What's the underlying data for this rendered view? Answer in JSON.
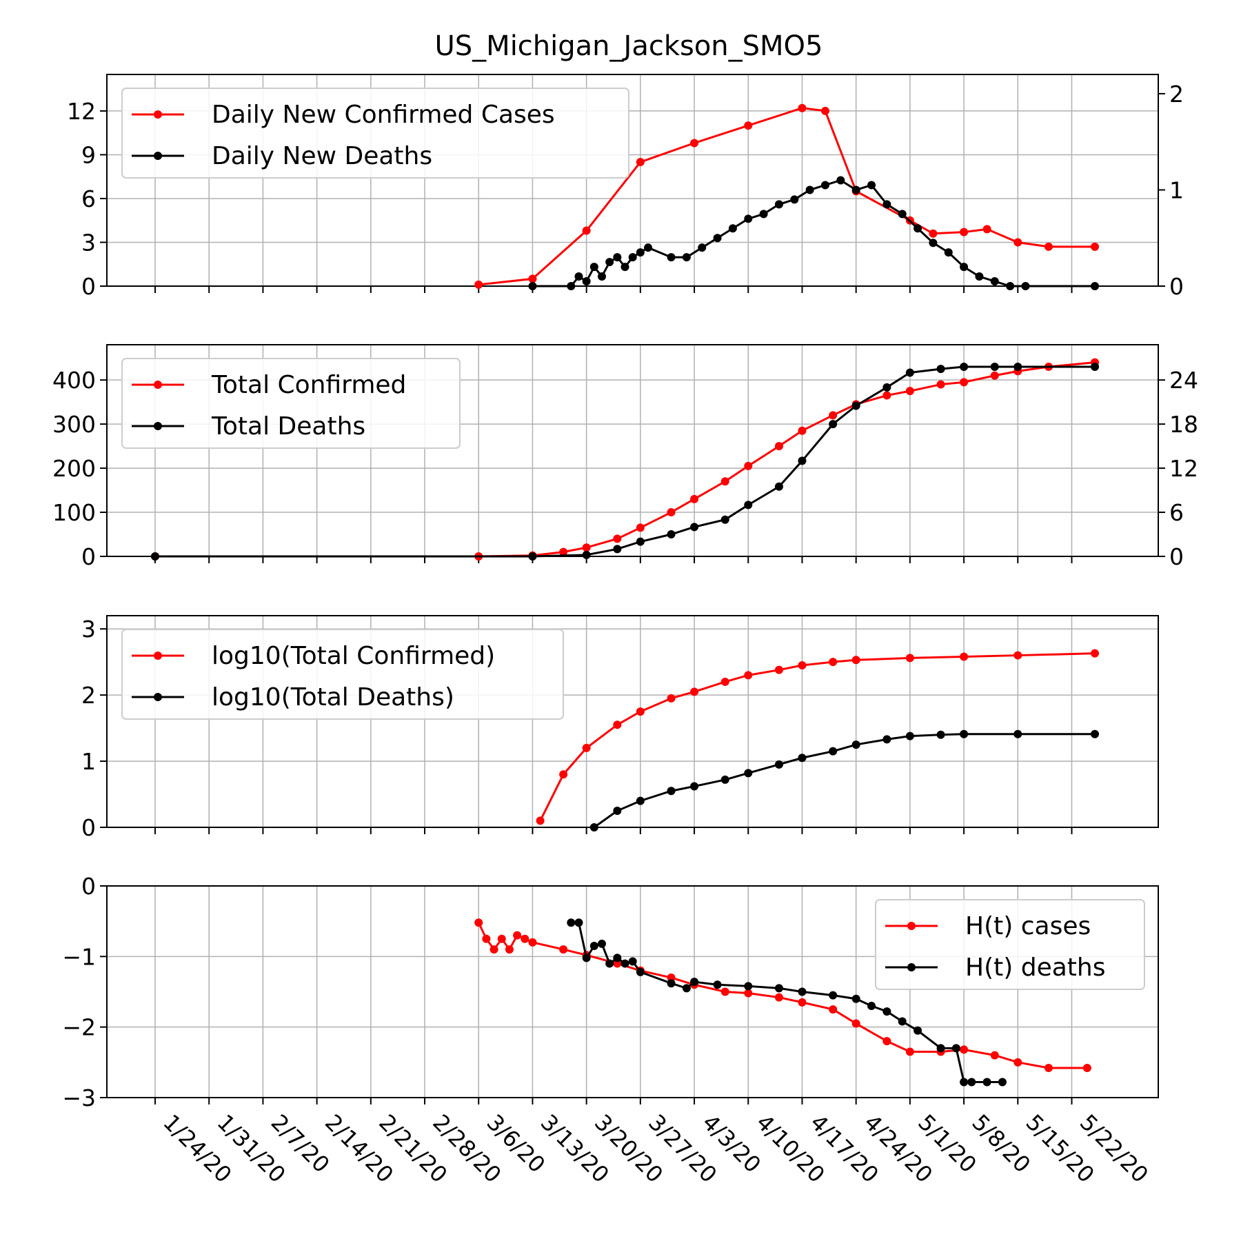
{
  "title": "US_Michigan_Jackson_SMO5",
  "colors": {
    "cases": "#ff0000",
    "deaths": "#000000",
    "grid": "#b0b0b0"
  },
  "x_tick_labels": [
    "1/24/20",
    "1/31/20",
    "2/7/20",
    "2/14/20",
    "2/21/20",
    "2/28/20",
    "3/6/20",
    "3/13/20",
    "3/20/20",
    "3/27/20",
    "4/3/20",
    "4/10/20",
    "4/17/20",
    "4/24/20",
    "5/1/20",
    "5/8/20",
    "5/15/20",
    "5/22/20"
  ],
  "chart_data": [
    {
      "type": "line",
      "x_range": [
        "1/24/20",
        "5/25/20"
      ],
      "ylim_left": [
        0,
        14.5
      ],
      "ylim_right": [
        0,
        2.2
      ],
      "left_ticks": [
        0,
        3,
        6,
        9,
        12
      ],
      "right_ticks": [
        0,
        1,
        2
      ],
      "grid": true,
      "legend_position": "top-left",
      "series": [
        {
          "name": "Daily New Confirmed Cases",
          "color": "#ff0000",
          "axis": "left",
          "x": [
            "3/6/20",
            "3/13/20",
            "3/20/20",
            "3/27/20",
            "4/3/20",
            "4/10/20",
            "4/17/20",
            "4/20/20",
            "4/24/20",
            "5/1/20",
            "5/4/20",
            "5/8/20",
            "5/11/20",
            "5/15/20",
            "5/19/20",
            "5/25/20"
          ],
          "y": [
            0.1,
            0.5,
            3.8,
            8.5,
            9.8,
            11.0,
            12.2,
            12.0,
            6.5,
            4.5,
            3.6,
            3.7,
            3.9,
            3.0,
            2.7,
            2.7
          ]
        },
        {
          "name": "Daily New Deaths",
          "color": "#000000",
          "axis": "right",
          "x": [
            "3/13/20",
            "3/18/20",
            "3/19/20",
            "3/20/20",
            "3/21/20",
            "3/22/20",
            "3/23/20",
            "3/24/20",
            "3/25/20",
            "3/26/20",
            "3/27/20",
            "3/28/20",
            "3/31/20",
            "4/2/20",
            "4/4/20",
            "4/6/20",
            "4/8/20",
            "4/10/20",
            "4/12/20",
            "4/14/20",
            "4/16/20",
            "4/18/20",
            "4/20/20",
            "4/22/20",
            "4/24/20",
            "4/26/20",
            "4/28/20",
            "4/30/20",
            "5/2/20",
            "5/4/20",
            "5/6/20",
            "5/8/20",
            "5/10/20",
            "5/12/20",
            "5/14/20",
            "5/16/20",
            "5/25/20"
          ],
          "y": [
            0,
            0,
            0.1,
            0.05,
            0.2,
            0.1,
            0.25,
            0.3,
            0.2,
            0.3,
            0.35,
            0.4,
            0.3,
            0.3,
            0.4,
            0.5,
            0.6,
            0.7,
            0.75,
            0.85,
            0.9,
            1.0,
            1.05,
            1.1,
            1.0,
            1.05,
            0.85,
            0.75,
            0.6,
            0.45,
            0.35,
            0.2,
            0.1,
            0.05,
            0.0,
            0.0,
            0.0
          ]
        }
      ]
    },
    {
      "type": "line",
      "x_range": [
        "1/24/20",
        "5/25/20"
      ],
      "ylim_left": [
        0,
        480
      ],
      "ylim_right": [
        0,
        28.8
      ],
      "left_ticks": [
        0,
        100,
        200,
        300,
        400
      ],
      "right_ticks": [
        0,
        6,
        12,
        18,
        24
      ],
      "grid": true,
      "legend_position": "top-left",
      "series": [
        {
          "name": "Total Confirmed",
          "color": "#ff0000",
          "axis": "left",
          "x": [
            "1/24/20",
            "3/6/20",
            "3/13/20",
            "3/17/20",
            "3/20/20",
            "3/24/20",
            "3/27/20",
            "3/31/20",
            "4/3/20",
            "4/7/20",
            "4/10/20",
            "4/14/20",
            "4/17/20",
            "4/21/20",
            "4/24/20",
            "4/28/20",
            "5/1/20",
            "5/5/20",
            "5/8/20",
            "5/12/20",
            "5/15/20",
            "5/19/20",
            "5/25/20"
          ],
          "y": [
            0,
            0,
            2,
            10,
            20,
            40,
            65,
            100,
            130,
            170,
            205,
            250,
            285,
            320,
            345,
            365,
            375,
            390,
            395,
            410,
            420,
            430,
            440
          ]
        },
        {
          "name": "Total Deaths",
          "color": "#000000",
          "axis": "right",
          "x": [
            "1/24/20",
            "3/13/20",
            "3/20/20",
            "3/24/20",
            "3/27/20",
            "3/31/20",
            "4/3/20",
            "4/7/20",
            "4/10/20",
            "4/14/20",
            "4/17/20",
            "4/21/20",
            "4/24/20",
            "4/28/20",
            "5/1/20",
            "5/5/20",
            "5/8/20",
            "5/12/20",
            "5/15/20",
            "5/25/20"
          ],
          "y": [
            0,
            0,
            0.2,
            1.0,
            2.0,
            3.0,
            4.0,
            5.0,
            7.0,
            9.5,
            13.0,
            18.0,
            20.5,
            23.0,
            25.0,
            25.5,
            25.8,
            25.8,
            25.8,
            25.8
          ]
        }
      ]
    },
    {
      "type": "line",
      "x_range": [
        "1/24/20",
        "5/25/20"
      ],
      "ylim_left": [
        0,
        3.2
      ],
      "left_ticks": [
        0,
        1,
        2,
        3
      ],
      "grid": true,
      "legend_position": "top-left",
      "series": [
        {
          "name": "log10(Total Confirmed)",
          "color": "#ff0000",
          "x": [
            "3/14/20",
            "3/17/20",
            "3/20/20",
            "3/24/20",
            "3/27/20",
            "3/31/20",
            "4/3/20",
            "4/7/20",
            "4/10/20",
            "4/14/20",
            "4/17/20",
            "4/21/20",
            "4/24/20",
            "5/1/20",
            "5/8/20",
            "5/15/20",
            "5/25/20"
          ],
          "y": [
            0.1,
            0.8,
            1.2,
            1.55,
            1.75,
            1.95,
            2.05,
            2.2,
            2.3,
            2.38,
            2.45,
            2.5,
            2.53,
            2.56,
            2.58,
            2.6,
            2.63
          ]
        },
        {
          "name": "log10(Total Deaths)",
          "color": "#000000",
          "x": [
            "3/21/20",
            "3/24/20",
            "3/27/20",
            "3/31/20",
            "4/3/20",
            "4/7/20",
            "4/10/20",
            "4/14/20",
            "4/17/20",
            "4/21/20",
            "4/24/20",
            "4/28/20",
            "5/1/20",
            "5/5/20",
            "5/8/20",
            "5/15/20",
            "5/25/20"
          ],
          "y": [
            0.0,
            0.25,
            0.4,
            0.55,
            0.62,
            0.72,
            0.82,
            0.95,
            1.05,
            1.15,
            1.25,
            1.33,
            1.38,
            1.4,
            1.41,
            1.41,
            1.41
          ]
        }
      ]
    },
    {
      "type": "line",
      "x_range": [
        "1/24/20",
        "5/25/20"
      ],
      "ylim_left": [
        -3,
        0
      ],
      "left_ticks": [
        -3,
        -2,
        -1,
        0
      ],
      "grid": true,
      "legend_position": "top-right",
      "series": [
        {
          "name": "H(t) cases",
          "color": "#ff0000",
          "x": [
            "3/6/20",
            "3/7/20",
            "3/8/20",
            "3/9/20",
            "3/10/20",
            "3/11/20",
            "3/12/20",
            "3/13/20",
            "3/17/20",
            "3/20/20",
            "3/24/20",
            "3/27/20",
            "3/31/20",
            "4/3/20",
            "4/7/20",
            "4/10/20",
            "4/14/20",
            "4/17/20",
            "4/21/20",
            "4/24/20",
            "4/28/20",
            "5/1/20",
            "5/5/20",
            "5/8/20",
            "5/12/20",
            "5/15/20",
            "5/19/20",
            "5/24/20"
          ],
          "y": [
            -0.52,
            -0.75,
            -0.9,
            -0.75,
            -0.9,
            -0.7,
            -0.75,
            -0.8,
            -0.9,
            -0.98,
            -1.1,
            -1.2,
            -1.3,
            -1.4,
            -1.5,
            -1.52,
            -1.58,
            -1.65,
            -1.75,
            -1.95,
            -2.2,
            -2.35,
            -2.35,
            -2.32,
            -2.4,
            -2.5,
            -2.58,
            -2.58
          ]
        },
        {
          "name": "H(t) deaths",
          "color": "#000000",
          "x": [
            "3/18/20",
            "3/19/20",
            "3/20/20",
            "3/21/20",
            "3/22/20",
            "3/23/20",
            "3/24/20",
            "3/25/20",
            "3/26/20",
            "3/27/20",
            "3/31/20",
            "4/2/20",
            "4/3/20",
            "4/6/20",
            "4/10/20",
            "4/14/20",
            "4/17/20",
            "4/21/20",
            "4/24/20",
            "4/26/20",
            "4/28/20",
            "4/30/20",
            "5/2/20",
            "5/5/20",
            "5/7/20",
            "5/8/20",
            "5/9/20",
            "5/11/20",
            "5/13/20"
          ],
          "y": [
            -0.52,
            -0.52,
            -1.02,
            -0.85,
            -0.82,
            -1.1,
            -1.02,
            -1.1,
            -1.07,
            -1.22,
            -1.38,
            -1.45,
            -1.36,
            -1.4,
            -1.42,
            -1.45,
            -1.5,
            -1.55,
            -1.6,
            -1.7,
            -1.78,
            -1.92,
            -2.05,
            -2.3,
            -2.3,
            -2.78,
            -2.78,
            -2.78,
            -2.78
          ]
        }
      ]
    }
  ]
}
